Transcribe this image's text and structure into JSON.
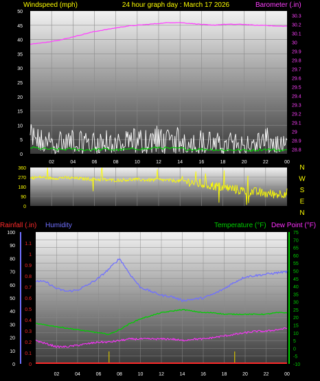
{
  "header": {
    "left_label": "Windspeed (mph)",
    "center_label": "24 hour graph day : March 17 2026",
    "right_label": "Barometer (.in)"
  },
  "colors": {
    "background": "#000000",
    "plot_gradient_top": "#f2f2f2",
    "plot_gradient_bottom": "#3a3a3a",
    "grid": "#8a8a8a",
    "wind": "#ffffff",
    "wind_avg": "#00d000",
    "barometer": "#ff40ff",
    "direction": "#ffff00",
    "rainfall": "#ff2a2a",
    "humidity": "#7070ff",
    "temperature": "#00d000",
    "dew_point": "#ff30ff",
    "hour_tick": "#ffffff",
    "rain_tick": "#d4c000"
  },
  "chart_data": [
    {
      "type": "line",
      "id": "wind-barometer",
      "title": "24 hour graph day : March 17 2026",
      "ylabel": "Windspeed (mph)",
      "y2label": "Barometer (.in)",
      "ylim": [
        0,
        50
      ],
      "y2lim": [
        28.75,
        30.35
      ],
      "yticks": [
        0,
        5,
        10,
        15,
        20,
        25,
        30,
        35,
        40,
        45,
        50
      ],
      "y2ticks": [
        28.8,
        28.9,
        29,
        29.1,
        29.2,
        29.3,
        29.4,
        29.5,
        29.6,
        29.7,
        29.8,
        29.9,
        30,
        30.1,
        30.2,
        30.3
      ],
      "xticks": [
        "02",
        "04",
        "06",
        "08",
        "10",
        "12",
        "14",
        "16",
        "18",
        "20",
        "22",
        "00"
      ],
      "grid": true,
      "series": [
        {
          "name": "Windspeed (mph)",
          "axis": "left",
          "style": "spiky",
          "hours": [
            0,
            1,
            2,
            3,
            4,
            5,
            6,
            7,
            8,
            9,
            10,
            11,
            12,
            13,
            14,
            15,
            16,
            17,
            18,
            19,
            20,
            21,
            22,
            23,
            24
          ],
          "values": [
            10.5,
            9,
            8,
            8.5,
            9,
            7.5,
            8,
            8.5,
            7,
            8,
            9.5,
            8.5,
            10.5,
            9,
            9.5,
            8,
            8.5,
            8,
            7,
            8,
            6.5,
            7,
            9.5,
            7,
            6
          ],
          "low": 0
        },
        {
          "name": "Average wind",
          "axis": "left",
          "hours": [
            0,
            1,
            2,
            3,
            4,
            5,
            6,
            7,
            8,
            9,
            10,
            11,
            12,
            13,
            14,
            15,
            16,
            17,
            18,
            19,
            20,
            21,
            22,
            23,
            24
          ],
          "values": [
            2.2,
            1.8,
            1.6,
            1.5,
            1.7,
            1.4,
            1.5,
            1.6,
            1.4,
            1.5,
            1.8,
            1.7,
            2.2,
            1.8,
            1.9,
            1.5,
            1.6,
            1.5,
            1.3,
            1.4,
            1.2,
            1.3,
            1.6,
            1.3,
            1.2
          ]
        },
        {
          "name": "Barometer (.in)",
          "axis": "right",
          "hours": [
            0,
            1,
            2,
            3,
            4,
            5,
            6,
            7,
            8,
            9,
            10,
            11,
            12,
            13,
            14,
            15,
            16,
            17,
            18,
            19,
            20,
            21,
            22,
            23,
            24
          ],
          "values": [
            29.98,
            29.99,
            30.01,
            30.03,
            30.06,
            30.09,
            30.12,
            30.14,
            30.16,
            30.18,
            30.19,
            30.2,
            30.21,
            30.22,
            30.22,
            30.21,
            30.2,
            30.19,
            30.2,
            30.2,
            30.2,
            30.19,
            30.19,
            30.18,
            30.18
          ]
        }
      ]
    },
    {
      "type": "line",
      "id": "wind-direction",
      "ylim": [
        0,
        360
      ],
      "yticks": [
        0,
        90,
        180,
        270,
        360
      ],
      "compass_labels": [
        "N",
        "W",
        "S",
        "E",
        "N"
      ],
      "grid": true,
      "series": [
        {
          "name": "Wind direction",
          "hours": [
            0,
            1,
            2,
            3,
            4,
            5,
            6,
            7,
            8,
            9,
            10,
            11,
            12,
            13,
            14,
            15,
            16,
            17,
            18,
            19,
            20,
            21,
            22,
            23,
            24
          ],
          "values": [
            262,
            270,
            258,
            265,
            260,
            255,
            250,
            245,
            240,
            245,
            248,
            242,
            245,
            240,
            232,
            225,
            205,
            190,
            175,
            160,
            140,
            130,
            115,
            110,
            125
          ]
        }
      ]
    },
    {
      "type": "line",
      "id": "rain-humidity-temp",
      "ylabel_left": [
        "Rainfall (.in)",
        "Humidity"
      ],
      "ylabel_right": [
        "Temperature (°F)",
        "Dew Point (°F)"
      ],
      "humidity_ylim": [
        0,
        100
      ],
      "humidity_yticks": [
        0,
        10,
        20,
        30,
        40,
        50,
        60,
        70,
        80,
        90,
        100
      ],
      "rain_ylim": [
        0,
        1.2
      ],
      "rain_yticks": [
        0,
        0.1,
        0.2,
        0.3,
        0.4,
        0.5,
        0.6,
        0.7,
        0.8,
        0.9,
        1,
        1.1
      ],
      "temp_ylim": [
        -10,
        75
      ],
      "temp_yticks": [
        -10,
        -5,
        0,
        5,
        10,
        15,
        20,
        25,
        30,
        35,
        40,
        45,
        50,
        55,
        60,
        65,
        70,
        75
      ],
      "xticks": [
        "02",
        "04",
        "06",
        "08",
        "10",
        "12",
        "14",
        "16",
        "18",
        "20",
        "22",
        "00"
      ],
      "grid": true,
      "rain_ticks_hours": [
        7,
        19
      ],
      "series": [
        {
          "name": "Humidity",
          "axis": "humidity",
          "hours": [
            0,
            1,
            2,
            3,
            4,
            5,
            6,
            7,
            8,
            9,
            10,
            11,
            12,
            13,
            14,
            15,
            16,
            17,
            18,
            19,
            20,
            21,
            22,
            23,
            24
          ],
          "values": [
            63,
            62,
            57,
            55,
            56,
            60,
            65,
            72,
            80,
            68,
            58,
            55,
            52,
            51,
            48,
            49,
            50,
            53,
            57,
            62,
            66,
            67,
            68,
            69,
            70
          ]
        },
        {
          "name": "Temperature (°F)",
          "axis": "temp",
          "hours": [
            0,
            1,
            2,
            3,
            4,
            5,
            6,
            7,
            8,
            9,
            10,
            11,
            12,
            13,
            14,
            15,
            16,
            17,
            18,
            19,
            20,
            21,
            22,
            23,
            24
          ],
          "values": [
            16,
            15,
            14,
            13,
            12,
            11,
            10,
            9,
            12,
            16,
            19,
            21,
            23,
            24,
            25,
            24,
            23,
            23,
            22,
            22,
            22,
            22,
            22,
            23,
            23
          ]
        },
        {
          "name": "Dew Point (°F)",
          "axis": "temp",
          "hours": [
            0,
            1,
            2,
            3,
            4,
            5,
            6,
            7,
            8,
            9,
            10,
            11,
            12,
            13,
            14,
            15,
            16,
            17,
            18,
            19,
            20,
            21,
            22,
            23,
            24
          ],
          "values": [
            5,
            3,
            1,
            1,
            2,
            3,
            4,
            4,
            5,
            6,
            6,
            6,
            6,
            6,
            5,
            6,
            6,
            7,
            8,
            9,
            10,
            11,
            11,
            12,
            13
          ]
        },
        {
          "name": "Rainfall (.in)",
          "axis": "rain",
          "hours": [
            0,
            24
          ],
          "values": [
            0,
            0
          ]
        }
      ]
    }
  ]
}
